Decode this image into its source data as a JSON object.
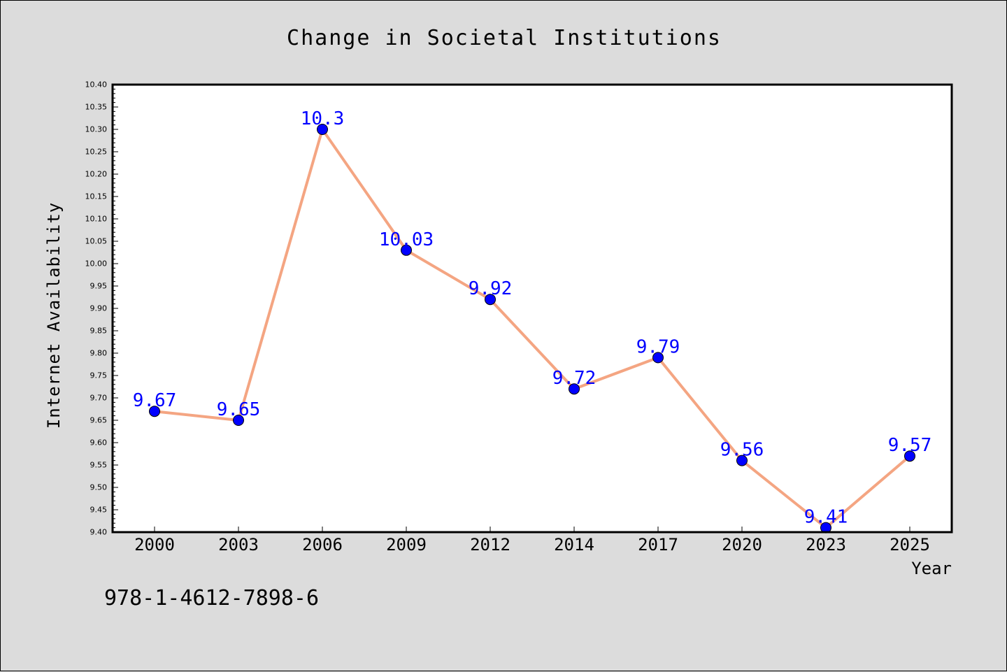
{
  "chart_data": {
    "type": "line",
    "title": "Change in Societal Institutions",
    "xlabel": "Year",
    "ylabel": "Internet Availability",
    "categories": [
      "2000",
      "2003",
      "2006",
      "2009",
      "2012",
      "2014",
      "2017",
      "2020",
      "2023",
      "2025"
    ],
    "series": [
      {
        "values": [
          9.67,
          9.65,
          10.3,
          10.03,
          9.92,
          9.72,
          9.79,
          9.56,
          9.41,
          9.57
        ],
        "labels": [
          "9.67",
          "9.65",
          "10.3",
          "10.03",
          "9.92",
          "9.72",
          "9.79",
          "9.56",
          "9.41",
          "9.57"
        ],
        "line_color": "#f4a582",
        "marker_color": "#0000ff",
        "label_color": "#0000ff"
      }
    ],
    "ylim": [
      9.4,
      10.4
    ],
    "y_ticks": [
      "9.40",
      "9.45",
      "9.50",
      "9.55",
      "9.60",
      "9.65",
      "9.70",
      "9.75",
      "9.80",
      "9.85",
      "9.90",
      "9.95",
      "10.00",
      "10.05",
      "10.10",
      "10.15",
      "10.20",
      "10.25",
      "10.30",
      "10.35",
      "10.40"
    ],
    "grid": false,
    "legend": "none"
  },
  "annotation": "978-1-4612-7898-6"
}
